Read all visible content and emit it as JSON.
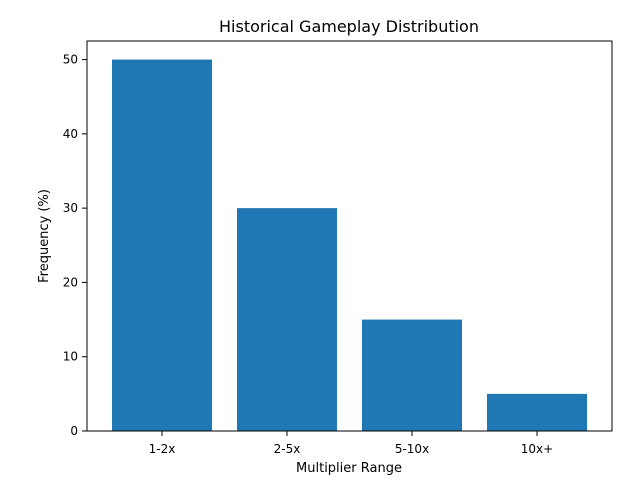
{
  "chart_data": {
    "type": "bar",
    "title": "Historical Gameplay Distribution",
    "xlabel": "Multiplier Range",
    "ylabel": "Frequency (%)",
    "categories": [
      "1-2x",
      "2-5x",
      "5-10x",
      "10x+"
    ],
    "values": [
      50,
      30,
      15,
      5
    ],
    "ylim": [
      0,
      52.5
    ],
    "yticks": [
      0,
      10,
      20,
      30,
      40,
      50
    ],
    "grid": false,
    "bar_color": "#1f77b4"
  }
}
